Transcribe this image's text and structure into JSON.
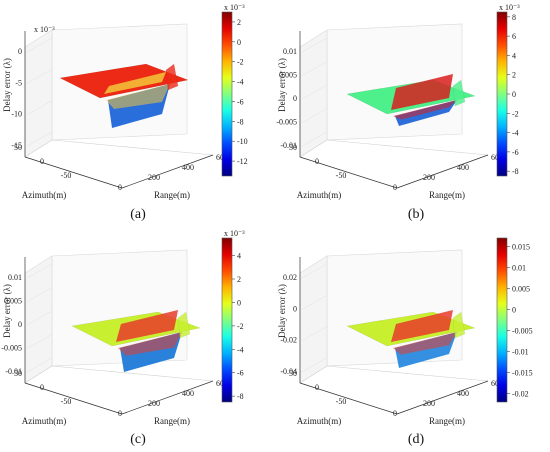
{
  "figure": {
    "panels": [
      {
        "caption": "(a)"
      },
      {
        "caption": "(b)"
      },
      {
        "caption": "(c)"
      },
      {
        "caption": "(d)"
      }
    ]
  },
  "chart_data": [
    {
      "type": "surface3d",
      "id": "a",
      "zlabel": "Delay error (λ)",
      "xlabel": "Range(m)",
      "ylabel": "Azimuth(m)",
      "z_multiplier": "x 10⁻³",
      "z_ticks": [
        "0",
        "-5",
        "-10",
        "-15"
      ],
      "zlim": [
        -15,
        3
      ],
      "x_ticks": [
        "0",
        "200",
        "400",
        "600"
      ],
      "y_ticks": [
        "50",
        "0",
        "-50"
      ],
      "colorbar": {
        "multiplier": "x 10⁻³",
        "ticks": [
          "2",
          "0",
          "-2",
          "-4",
          "-6",
          "-8",
          "-10",
          "-12"
        ],
        "range": [
          -13.5,
          3
        ]
      },
      "surface_colors": {
        "plane": "#ec2a16",
        "wedge": "#1e66d8",
        "ridge": "#f4c63a"
      }
    },
    {
      "type": "surface3d",
      "id": "b",
      "zlabel": "Delay error (λ)",
      "xlabel": "Range(m)",
      "ylabel": "Azimuth(m)",
      "z_multiplier": "",
      "z_ticks": [
        "0.01",
        "0.005",
        "0",
        "-0.005",
        "-0.01"
      ],
      "zlim": [
        -0.01,
        0.01
      ],
      "x_ticks": [
        "0",
        "200",
        "400",
        "600"
      ],
      "y_ticks": [
        "50",
        "0",
        "-50"
      ],
      "colorbar": {
        "multiplier": "x 10⁻³",
        "ticks": [
          "8",
          "6",
          "4",
          "2",
          "0",
          "-2",
          "-4",
          "-6",
          "-8"
        ],
        "range": [
          -8.5,
          8.5
        ]
      },
      "surface_colors": {
        "plane": "#4df08a",
        "wedge": "#2266d6",
        "ridge": "#d81f1f"
      }
    },
    {
      "type": "surface3d",
      "id": "c",
      "zlabel": "Delay error (λ)",
      "xlabel": "Range(m)",
      "ylabel": "Azimuth(m)",
      "z_multiplier": "",
      "z_ticks": [
        "0.01",
        "0.005",
        "0",
        "-0.005",
        "-0.01"
      ],
      "zlim": [
        -0.01,
        0.01
      ],
      "x_ticks": [
        "0",
        "200",
        "400",
        "600"
      ],
      "y_ticks": [
        "50",
        "0",
        "-50"
      ],
      "colorbar": {
        "multiplier": "x 10⁻³",
        "ticks": [
          "4",
          "2",
          "0",
          "-2",
          "-4",
          "-6",
          "-8"
        ],
        "range": [
          -8.5,
          5.5
        ]
      },
      "surface_colors": {
        "plane": "#c8f030",
        "wedge": "#1f7ad8",
        "ridge": "#e8392a"
      }
    },
    {
      "type": "surface3d",
      "id": "d",
      "zlabel": "Delay error (λ)",
      "xlabel": "Range(m)",
      "ylabel": "Azimuth(m)",
      "z_multiplier": "",
      "z_ticks": [
        "0.02",
        "0",
        "-0.02",
        "-0.04"
      ],
      "zlim": [
        -0.04,
        0.02
      ],
      "x_ticks": [
        "0",
        "200",
        "400",
        "600"
      ],
      "y_ticks": [
        "50",
        "0",
        "-50"
      ],
      "colorbar": {
        "multiplier": "",
        "ticks": [
          "0.015",
          "0.01",
          "0.005",
          "0",
          "-0.005",
          "-0.01",
          "-0.015",
          "-0.02"
        ],
        "range": [
          -0.022,
          0.017
        ]
      },
      "surface_colors": {
        "plane": "#c8f030",
        "wedge": "#2a8ae0",
        "ridge": "#e8392a"
      }
    }
  ]
}
